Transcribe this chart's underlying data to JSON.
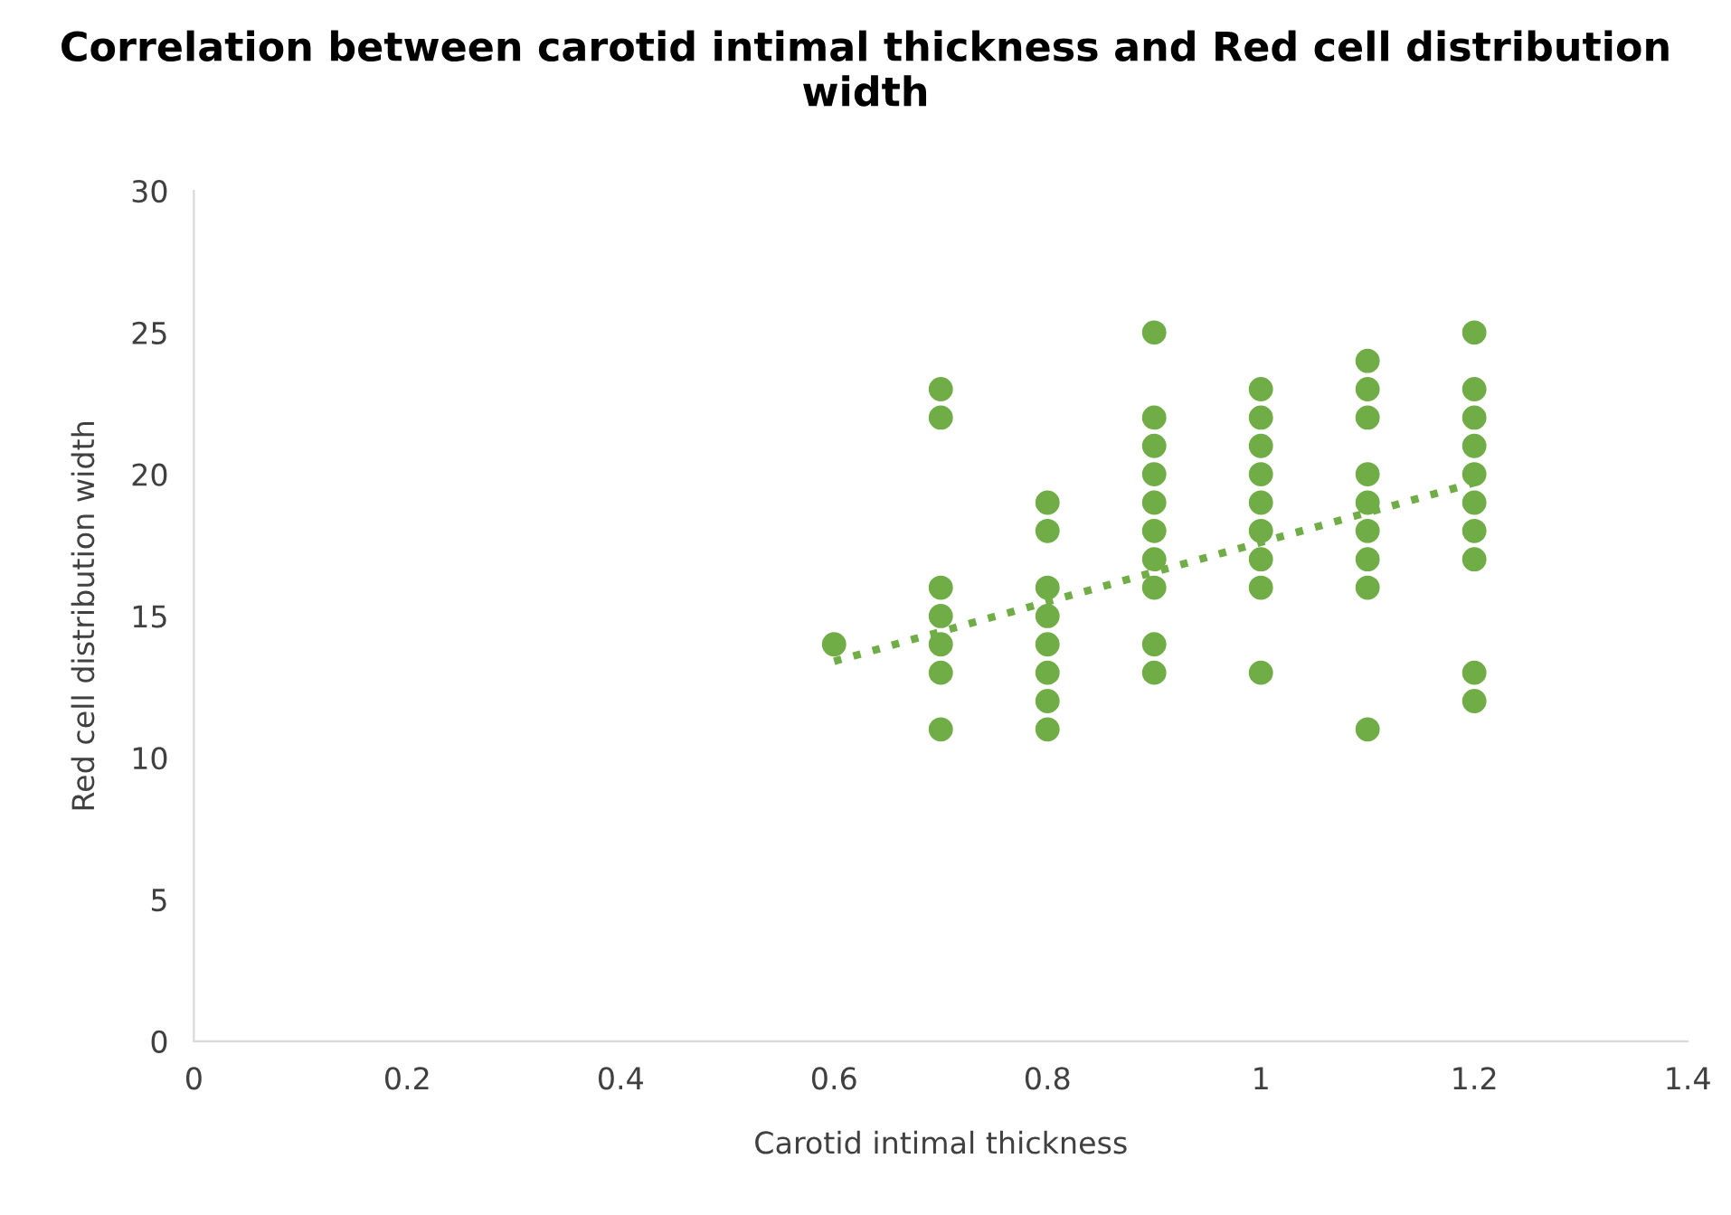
{
  "chart_data": {
    "type": "scatter",
    "title": "Correlation between carotid intimal thickness and Red cell distribution width",
    "xlabel": "Carotid intimal thickness",
    "ylabel": "Red cell distribution width",
    "xlim": [
      0,
      1.4
    ],
    "xticks": [
      0,
      0.2,
      0.4,
      0.6,
      0.8,
      1,
      1.2,
      1.4
    ],
    "ylim": [
      0,
      30
    ],
    "yticks": [
      0,
      5,
      10,
      15,
      20,
      25,
      30
    ],
    "grid": false,
    "legend": false,
    "series": [
      {
        "color": "#70ad47",
        "marker": "circle",
        "x": [
          0.6,
          0.7,
          0.7,
          0.7,
          0.7,
          0.7,
          0.7,
          0.7,
          0.8,
          0.8,
          0.8,
          0.8,
          0.8,
          0.8,
          0.8,
          0.8,
          0.9,
          0.9,
          0.9,
          0.9,
          0.9,
          0.9,
          0.9,
          0.9,
          0.9,
          0.9,
          1,
          1,
          1,
          1,
          1,
          1,
          1,
          1,
          1,
          1.1,
          1.1,
          1.1,
          1.1,
          1.1,
          1.1,
          1.1,
          1.1,
          1.1,
          1.2,
          1.2,
          1.2,
          1.2,
          1.2,
          1.2,
          1.2,
          1.2,
          1.2,
          1.2
        ],
        "values": [
          14,
          23,
          22,
          16,
          15,
          14,
          13,
          11,
          19,
          18,
          16,
          15,
          14,
          13,
          12,
          11,
          25,
          22,
          21,
          20,
          19,
          18,
          17,
          16,
          14,
          13,
          23,
          22,
          21,
          20,
          19,
          18,
          17,
          16,
          13,
          24,
          23,
          22,
          20,
          19,
          18,
          17,
          16,
          11,
          25,
          23,
          22,
          21,
          20,
          19,
          18,
          17,
          13,
          12
        ]
      },
      {
        "type": "line",
        "color": "#70ad47",
        "marker": "none",
        "line_style": "dotted",
        "x": [
          0.6,
          1.2
        ],
        "values": [
          13.4,
          19.7
        ]
      }
    ]
  }
}
